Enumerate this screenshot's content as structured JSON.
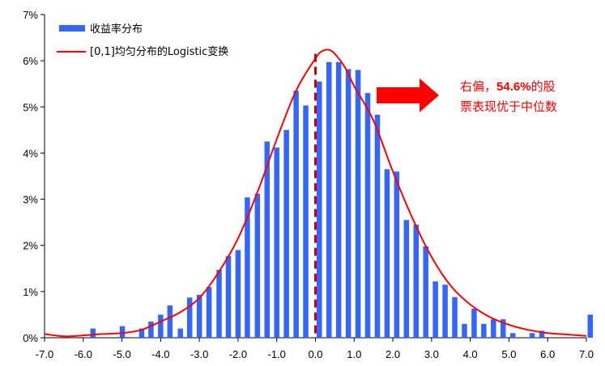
{
  "chart_data": {
    "type": "bar",
    "xlim": [
      -7.0,
      7.0
    ],
    "ylim": [
      0,
      7
    ],
    "x_ticks": [
      "-7.0",
      "-6.0",
      "-5.0",
      "-4.0",
      "-3.0",
      "-2.0",
      "-1.0",
      "0.0",
      "1.0",
      "2.0",
      "3.0",
      "4.0",
      "5.0",
      "6.0",
      "7.0"
    ],
    "y_ticks": [
      "0%",
      "1%",
      "2%",
      "3%",
      "4%",
      "5%",
      "6%",
      "7%"
    ],
    "grid": false,
    "legend_position": "top-left",
    "series": [
      {
        "name": "收益率分布",
        "type": "bar",
        "color": "#3366ff",
        "x": [
          -5.75,
          -4.99,
          -4.49,
          -4.25,
          -4.0,
          -3.76,
          -3.49,
          -3.25,
          -3.0,
          -2.75,
          -2.49,
          -2.25,
          -2.0,
          -1.76,
          -1.5,
          -1.25,
          -1.0,
          -0.75,
          -0.5,
          -0.25,
          0.1,
          0.35,
          0.6,
          0.85,
          1.1,
          1.35,
          1.6,
          1.85,
          2.1,
          2.35,
          2.6,
          2.85,
          3.1,
          3.35,
          3.6,
          3.85,
          4.1,
          4.35,
          4.6,
          4.85,
          5.1,
          5.6,
          5.85,
          7.1
        ],
        "values": [
          0.2,
          0.25,
          0.2,
          0.35,
          0.5,
          0.7,
          0.2,
          0.87,
          0.93,
          1.1,
          1.47,
          1.77,
          1.9,
          3.04,
          3.12,
          4.25,
          4.12,
          4.5,
          5.35,
          5.03,
          5.55,
          5.97,
          5.97,
          5.82,
          5.8,
          5.3,
          4.83,
          3.65,
          3.6,
          2.55,
          2.45,
          1.98,
          1.22,
          1.15,
          0.88,
          0.3,
          0.63,
          0.3,
          0.4,
          0.4,
          0.1,
          0.1,
          0.15,
          0.5
        ]
      },
      {
        "name": "[0,1]均匀分布的Logistic变换",
        "type": "line",
        "color": "#ff0000",
        "x": [
          -7.0,
          -6.5,
          -6.0,
          -5.5,
          -5.0,
          -4.5,
          -4.0,
          -3.5,
          -3.0,
          -2.5,
          -2.0,
          -1.5,
          -1.0,
          -0.5,
          0.0,
          0.2,
          0.4,
          0.6,
          0.8,
          1.0,
          1.5,
          2.0,
          2.5,
          3.0,
          3.5,
          4.0,
          4.5,
          5.0,
          5.5,
          6.0,
          6.5,
          7.0
        ],
        "values": [
          0.08,
          0.03,
          0.05,
          0.08,
          0.1,
          0.17,
          0.35,
          0.55,
          0.86,
          1.42,
          2.15,
          3.15,
          4.3,
          5.35,
          6.05,
          6.22,
          6.22,
          6.05,
          5.8,
          5.45,
          4.7,
          3.6,
          2.6,
          1.75,
          1.12,
          0.72,
          0.45,
          0.28,
          0.17,
          0.1,
          0.07,
          0.04
        ]
      }
    ],
    "reference_line": {
      "x": 0.0,
      "style": "dashed",
      "color": "#cc0000"
    },
    "annotation": {
      "line1_prefix": "右偏，",
      "line1_value": "54.6%",
      "line1_suffix": "的股",
      "line2": "票表现优于中位数",
      "arrow_color": "#ff0000"
    }
  }
}
